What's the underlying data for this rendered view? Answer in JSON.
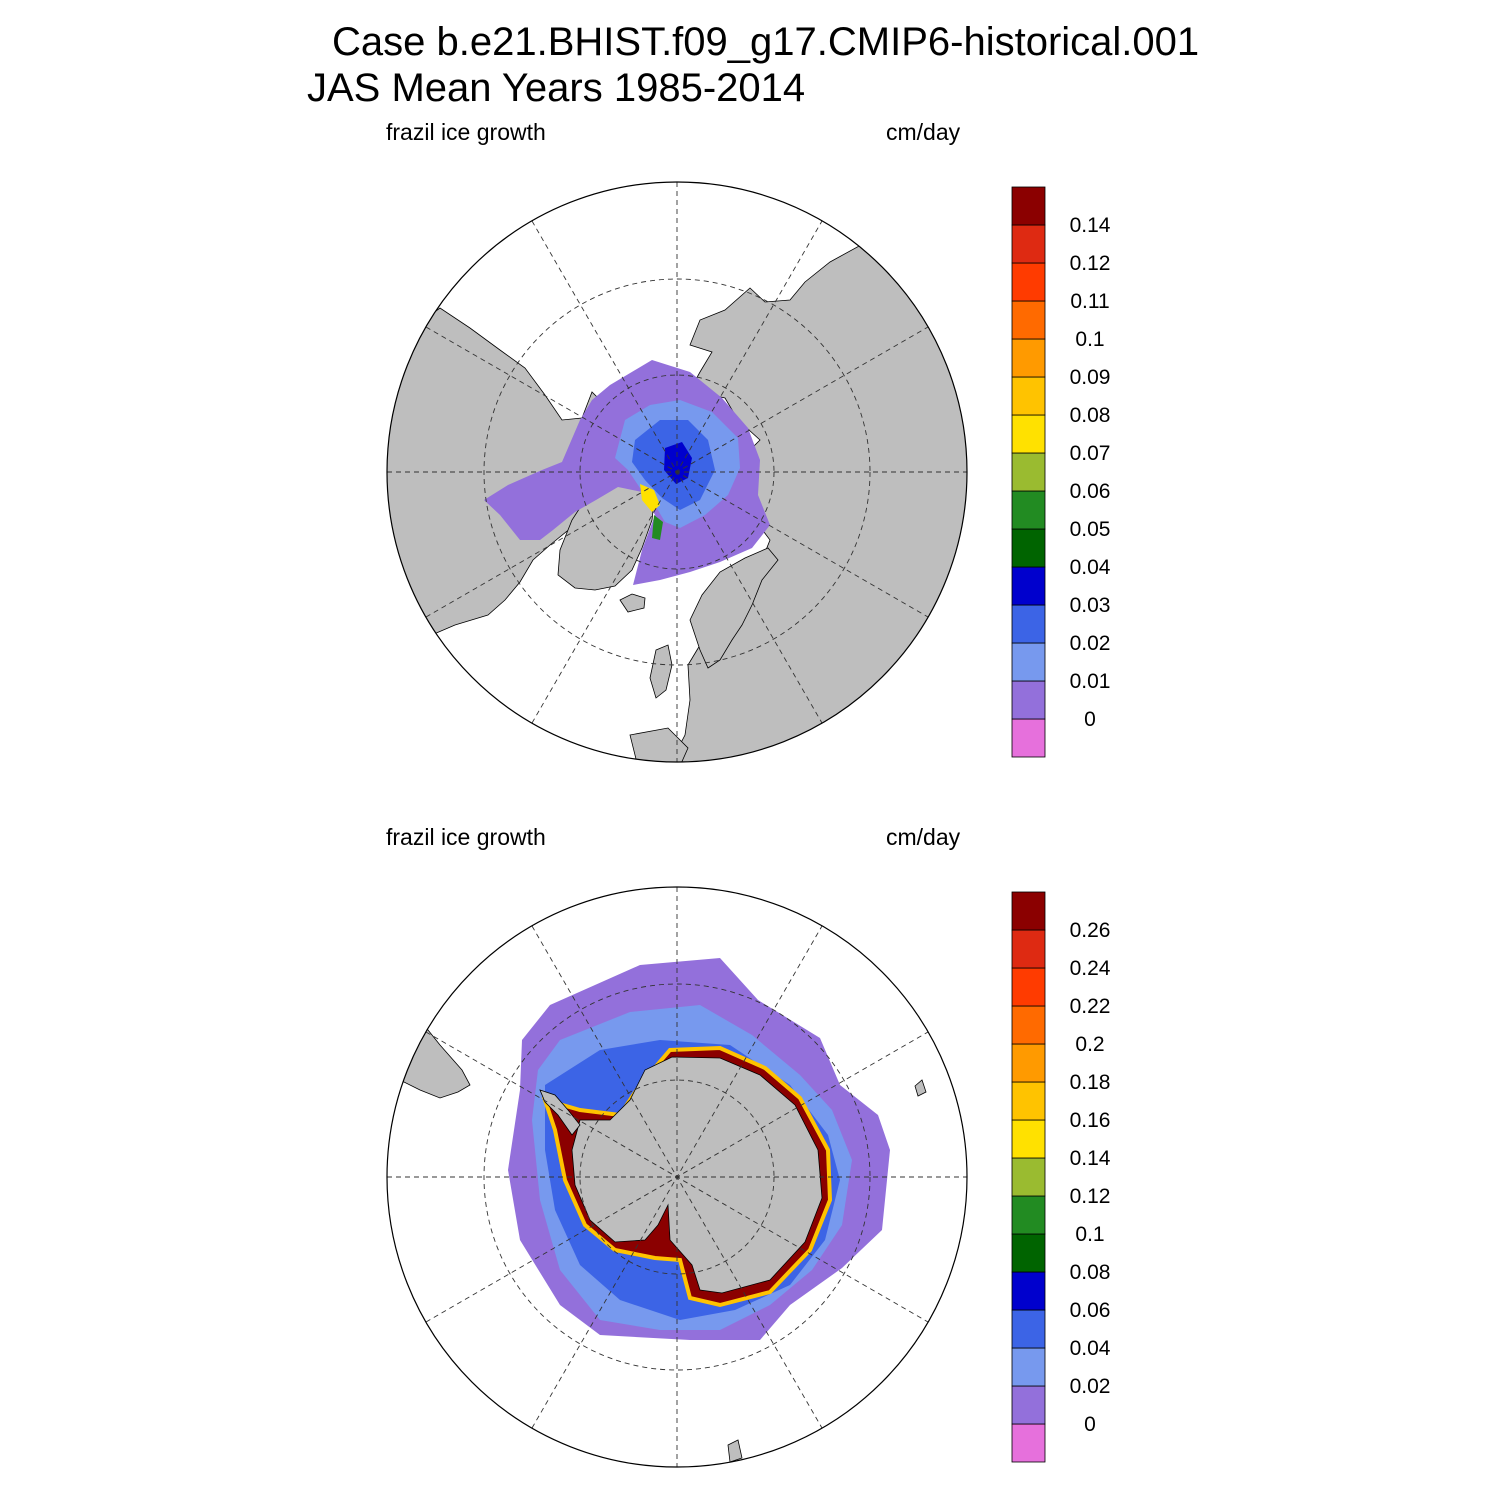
{
  "title": {
    "line1": "Case b.e21.BHIST.f09_g17.CMIP6-historical.001",
    "line2": "JAS Mean   Years 1985-2014"
  },
  "colors": {
    "land": "#bebebe",
    "no_data": "#ffffff",
    "scale": [
      "#e670dc",
      "#9370db",
      "#7799ee",
      "#3c64e6",
      "#0000cd",
      "#006400",
      "#228b22",
      "#9abb30",
      "#ffe100",
      "#ffc300",
      "#ff9a00",
      "#ff6a00",
      "#ff3b00",
      "#de2a12",
      "#8b0000"
    ]
  },
  "panels": [
    {
      "hemisphere": "north",
      "label_left": "frazil ice growth",
      "label_right": "cm/day",
      "colorbar_ticks": [
        "0.14",
        "0.12",
        "0.11",
        "0.1",
        "0.09",
        "0.08",
        "0.07",
        "0.06",
        "0.05",
        "0.04",
        "0.03",
        "0.02",
        "0.01",
        "0"
      ]
    },
    {
      "hemisphere": "south",
      "label_left": "frazil ice growth",
      "label_right": "cm/day",
      "colorbar_ticks": [
        "0.26",
        "0.24",
        "0.22",
        "0.2",
        "0.18",
        "0.16",
        "0.14",
        "0.12",
        "0.1",
        "0.08",
        "0.06",
        "0.04",
        "0.02",
        "0"
      ]
    }
  ]
}
